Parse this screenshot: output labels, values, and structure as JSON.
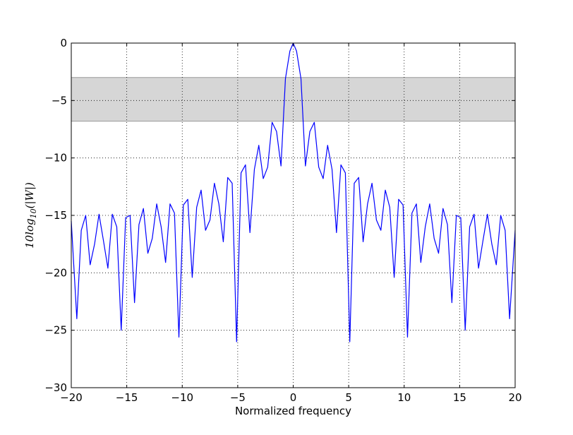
{
  "chart_data": {
    "type": "line",
    "title": "",
    "xlabel": "Normalized frequency",
    "ylabel": "10log10(|W|)",
    "ylabel_parts": {
      "prefix": "10",
      "base": "log",
      "subscript": "10",
      "suffix": "(|W|)"
    },
    "xlim": [
      -20,
      20
    ],
    "ylim": [
      -30,
      0
    ],
    "xticks": [
      -20,
      -15,
      -10,
      -5,
      0,
      5,
      10,
      15,
      20
    ],
    "xtick_labels": [
      "−20",
      "−15",
      "−10",
      "−5",
      "0",
      "5",
      "10",
      "15",
      "20"
    ],
    "yticks": [
      0,
      -5,
      -10,
      -15,
      -20,
      -25,
      -30
    ],
    "ytick_labels": [
      "0",
      "−5",
      "−10",
      "−15",
      "−20",
      "−25",
      "−30"
    ],
    "grid": true,
    "band": {
      "y_from": -3,
      "y_to": -6.8,
      "color": "#d6d6d6",
      "edge_color": "#9a9a9a"
    },
    "line_color": "#0000ff",
    "series": [
      {
        "x": [
          -20.0,
          -19.5,
          -19.1,
          -18.7,
          -18.3,
          -17.9,
          -17.5,
          -17.1,
          -16.7,
          -16.3,
          -15.9,
          -15.5,
          -15.1,
          -14.7,
          -14.3,
          -13.9,
          -13.5,
          -13.1,
          -12.7,
          -12.3,
          -11.9,
          -11.5,
          -11.1,
          -10.7,
          -10.3,
          -9.9,
          -9.5,
          -9.1,
          -8.7,
          -8.3,
          -7.9,
          -7.5,
          -7.1,
          -6.7,
          -6.3,
          -5.9,
          -5.5,
          -5.1,
          -4.7,
          -4.3,
          -3.9,
          -3.5,
          -3.1,
          -2.7,
          -2.3,
          -1.9,
          -1.5,
          -1.1,
          -0.7,
          -0.3,
          0.0,
          0.3,
          0.7,
          1.1,
          1.5,
          1.9,
          2.3,
          2.7,
          3.1,
          3.5,
          3.9,
          4.3,
          4.7,
          5.1,
          5.5,
          5.9,
          6.3,
          6.7,
          7.1,
          7.5,
          7.9,
          8.3,
          8.7,
          9.1,
          9.5,
          9.9,
          10.3,
          10.7,
          11.1,
          11.5,
          11.9,
          12.3,
          12.7,
          13.1,
          13.5,
          13.9,
          14.3,
          14.7,
          15.1,
          15.5,
          15.9,
          16.3,
          16.7,
          17.1,
          17.5,
          17.9,
          18.3,
          18.7,
          19.1,
          19.5,
          20.0
        ],
        "y": [
          -15.5,
          -24.0,
          -16.3,
          -15.0,
          -19.3,
          -17.5,
          -14.9,
          -17.2,
          -19.6,
          -14.9,
          -16.0,
          -25.0,
          -15.2,
          -15.0,
          -22.6,
          -15.8,
          -14.4,
          -18.3,
          -17.0,
          -14.0,
          -16.0,
          -19.1,
          -14.0,
          -14.8,
          -25.6,
          -14.1,
          -13.6,
          -20.4,
          -14.3,
          -12.8,
          -16.3,
          -15.4,
          -12.2,
          -14.0,
          -17.3,
          -11.7,
          -12.2,
          -26.0,
          -11.3,
          -10.6,
          -16.5,
          -11.0,
          -8.9,
          -11.8,
          -10.8,
          -6.9,
          -7.7,
          -10.7,
          -3.1,
          -0.7,
          0.0,
          -0.7,
          -3.1,
          -10.7,
          -7.7,
          -6.9,
          -10.8,
          -11.8,
          -8.9,
          -11.0,
          -16.5,
          -10.6,
          -11.3,
          -26.0,
          -12.2,
          -11.7,
          -17.3,
          -14.0,
          -12.2,
          -15.4,
          -16.3,
          -12.8,
          -14.3,
          -20.4,
          -13.6,
          -14.1,
          -25.6,
          -14.8,
          -14.0,
          -19.1,
          -16.0,
          -14.0,
          -17.0,
          -18.3,
          -14.4,
          -15.8,
          -22.6,
          -15.0,
          -15.2,
          -25.0,
          -16.0,
          -14.9,
          -19.6,
          -17.2,
          -14.9,
          -17.5,
          -19.3,
          -15.0,
          -16.3,
          -24.0,
          -16.3
        ]
      }
    ]
  }
}
